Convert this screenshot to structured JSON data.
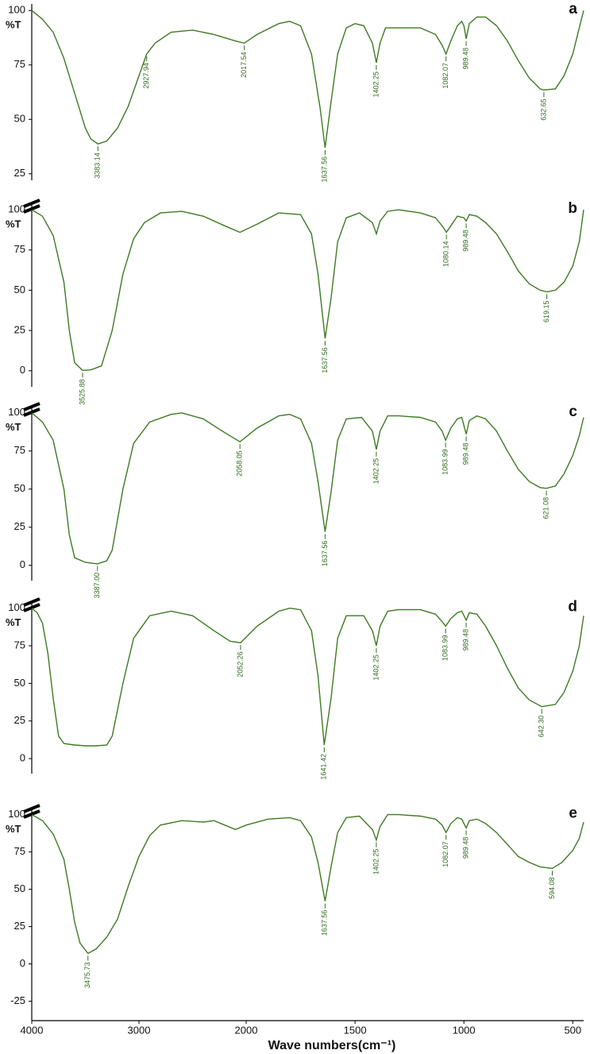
{
  "chart_data": [
    {
      "type": "line",
      "title": "a",
      "ylabel": "%T",
      "color": "#3d7a22",
      "xlim": [
        4000,
        450
      ],
      "x_scale_break": 2000,
      "ylim": [
        22,
        103
      ],
      "yticks": [
        25,
        50,
        75,
        100
      ],
      "x": [
        4000,
        3900,
        3800,
        3700,
        3600,
        3500,
        3450,
        3383.14,
        3300,
        3200,
        3100,
        3000,
        2927.94,
        2850,
        2700,
        2500,
        2300,
        2100,
        2017.54,
        1950,
        1850,
        1800,
        1750,
        1700,
        1660,
        1637.56,
        1610,
        1580,
        1540,
        1500,
        1460,
        1420,
        1402.25,
        1385,
        1360,
        1300,
        1200,
        1130,
        1100,
        1082.07,
        1060,
        1030,
        1010,
        1000,
        989.48,
        975,
        940,
        900,
        850,
        800,
        750,
        700,
        650,
        632.65,
        580,
        540,
        500,
        470,
        450
      ],
      "values": [
        100,
        96,
        90,
        78,
        62,
        46,
        41,
        38.7,
        40,
        46,
        56,
        70,
        80,
        85,
        90,
        91,
        89,
        86,
        85,
        89,
        94,
        95,
        93,
        80,
        55,
        37,
        58,
        80,
        92,
        94,
        93,
        85,
        76,
        85,
        92,
        92,
        92,
        89,
        84,
        80,
        86,
        93,
        95,
        93,
        87,
        94,
        97,
        97,
        93,
        86,
        77,
        69,
        64,
        63.5,
        64,
        70,
        80,
        92,
        100
      ],
      "peaks": [
        3383.14,
        2927.94,
        2017.54,
        1637.56,
        1402.25,
        1082.07,
        989.48,
        632.65
      ]
    },
    {
      "type": "line",
      "title": "b",
      "ylabel": "%T",
      "color": "#3d7a22",
      "xlim": [
        4000,
        450
      ],
      "x_scale_break": 2000,
      "ylim": [
        -10,
        103
      ],
      "yticks": [
        0,
        25,
        50,
        75,
        100
      ],
      "x": [
        4000,
        3900,
        3800,
        3700,
        3650,
        3600,
        3525.88,
        3450,
        3350,
        3250,
        3150,
        3050,
        2950,
        2800,
        2600,
        2400,
        2200,
        2058,
        1950,
        1850,
        1750,
        1700,
        1670,
        1637.56,
        1610,
        1580,
        1540,
        1480,
        1420,
        1402,
        1385,
        1350,
        1300,
        1200,
        1130,
        1100,
        1080.14,
        1060,
        1030,
        1000,
        989.48,
        975,
        940,
        900,
        850,
        800,
        750,
        700,
        650,
        619.15,
        580,
        540,
        500,
        470,
        450
      ],
      "values": [
        100,
        96,
        84,
        55,
        25,
        5,
        0.2,
        0.5,
        3,
        25,
        60,
        82,
        92,
        98,
        99,
        96,
        90,
        86,
        91,
        98,
        97,
        85,
        60,
        20,
        45,
        80,
        95,
        98,
        92,
        85,
        93,
        99,
        100,
        98,
        95,
        90,
        86,
        90,
        96,
        95,
        93,
        97,
        96,
        92,
        85,
        74,
        62,
        54,
        50,
        49,
        50,
        55,
        65,
        80,
        100
      ],
      "peaks": [
        3525.88,
        1637.56,
        1080.14,
        989.48,
        619.15
      ]
    },
    {
      "type": "line",
      "title": "c",
      "ylabel": "%T",
      "color": "#3d7a22",
      "xlim": [
        4000,
        450
      ],
      "x_scale_break": 2000,
      "ylim": [
        -10,
        103
      ],
      "yticks": [
        0,
        25,
        50,
        75,
        100
      ],
      "x": [
        4000,
        3900,
        3800,
        3700,
        3650,
        3600,
        3500,
        3387,
        3300,
        3250,
        3150,
        3050,
        2900,
        2700,
        2600,
        2400,
        2200,
        2058.05,
        1950,
        1850,
        1800,
        1750,
        1700,
        1670,
        1637.56,
        1610,
        1580,
        1540,
        1470,
        1420,
        1402.25,
        1385,
        1350,
        1300,
        1200,
        1130,
        1100,
        1083.99,
        1060,
        1030,
        1010,
        989.48,
        975,
        940,
        900,
        850,
        800,
        750,
        700,
        650,
        621.08,
        580,
        540,
        500,
        470,
        450
      ],
      "values": [
        100,
        94,
        82,
        50,
        20,
        5,
        2,
        1,
        3,
        10,
        50,
        80,
        94,
        99,
        100,
        96,
        87,
        81,
        90,
        98,
        99,
        96,
        80,
        55,
        22,
        48,
        82,
        96,
        97,
        88,
        76,
        88,
        98,
        98,
        97,
        94,
        88,
        82,
        90,
        96,
        97,
        86,
        95,
        98,
        96,
        88,
        75,
        63,
        55,
        51,
        50.5,
        52,
        60,
        72,
        85,
        97
      ],
      "peaks": [
        {
          "value": 3387,
          "label": "3387.00"
        },
        2058.05,
        1637.56,
        1402.25,
        1083.99,
        989.48,
        621.08
      ]
    },
    {
      "type": "line",
      "title": "d",
      "ylabel": "%T",
      "color": "#3d7a22",
      "xlim": [
        4000,
        450
      ],
      "x_scale_break": 2000,
      "ylim": [
        -10,
        103
      ],
      "yticks": [
        0,
        25,
        50,
        75,
        100
      ],
      "x": [
        4000,
        3950,
        3900,
        3850,
        3800,
        3750,
        3700,
        3600,
        3500,
        3400,
        3300,
        3250,
        3150,
        3050,
        2900,
        2700,
        2500,
        2300,
        2150,
        2052.26,
        1950,
        1850,
        1800,
        1750,
        1700,
        1670,
        1641.42,
        1610,
        1580,
        1540,
        1460,
        1420,
        1402.25,
        1385,
        1350,
        1300,
        1200,
        1130,
        1100,
        1083.99,
        1060,
        1030,
        1010,
        989.48,
        975,
        940,
        900,
        850,
        800,
        750,
        700,
        642.3,
        580,
        540,
        500,
        470,
        450
      ],
      "values": [
        100,
        97,
        90,
        70,
        40,
        15,
        10,
        9,
        8.5,
        8.5,
        9,
        15,
        50,
        80,
        95,
        98,
        95,
        85,
        78,
        77,
        88,
        98,
        100,
        99,
        85,
        55,
        9,
        40,
        80,
        95,
        95,
        85,
        75,
        88,
        98,
        99,
        99,
        96,
        91,
        88,
        93,
        97,
        98,
        92,
        97,
        96,
        88,
        75,
        60,
        47,
        39,
        34.5,
        36,
        44,
        58,
        75,
        95
      ],
      "peaks": [
        2052.26,
        1641.42,
        1402.25,
        1083.99,
        989.48,
        {
          "value": 642.3,
          "label": "642.30"
        }
      ]
    },
    {
      "type": "line",
      "title": "e",
      "ylabel": "%T",
      "color": "#3d7a22",
      "xlim": [
        4000,
        450
      ],
      "x_scale_break": 2000,
      "ylim": [
        -38,
        103
      ],
      "yticks": [
        -25,
        0,
        25,
        50,
        75,
        100
      ],
      "xticks": [
        4000,
        3000,
        2000,
        1500,
        1000,
        500
      ],
      "xlabel": "Wave numbers(cm⁻¹)",
      "x": [
        4000,
        3900,
        3800,
        3700,
        3650,
        3600,
        3550,
        3475.73,
        3400,
        3300,
        3200,
        3100,
        3000,
        2900,
        2800,
        2600,
        2400,
        2300,
        2200,
        2100,
        2000,
        1900,
        1800,
        1750,
        1700,
        1670,
        1637.56,
        1610,
        1580,
        1540,
        1480,
        1420,
        1402.25,
        1385,
        1350,
        1300,
        1200,
        1130,
        1100,
        1082.07,
        1060,
        1030,
        1010,
        989.48,
        975,
        940,
        900,
        850,
        800,
        750,
        700,
        650,
        594.08,
        550,
        500,
        470,
        450
      ],
      "values": [
        100,
        96,
        87,
        70,
        50,
        28,
        14,
        7,
        10,
        18,
        30,
        52,
        72,
        86,
        93,
        96,
        95,
        96,
        93,
        90,
        93,
        97,
        98,
        96,
        85,
        68,
        42,
        65,
        88,
        98,
        99,
        90,
        83,
        92,
        100,
        100,
        99,
        97,
        93,
        88,
        94,
        98,
        97,
        91,
        96,
        97,
        94,
        88,
        80,
        72,
        68,
        65,
        64,
        68,
        76,
        84,
        95
      ],
      "peaks": [
        3475.73,
        1637.56,
        1402.25,
        1082.07,
        989.48,
        594.08
      ]
    }
  ]
}
